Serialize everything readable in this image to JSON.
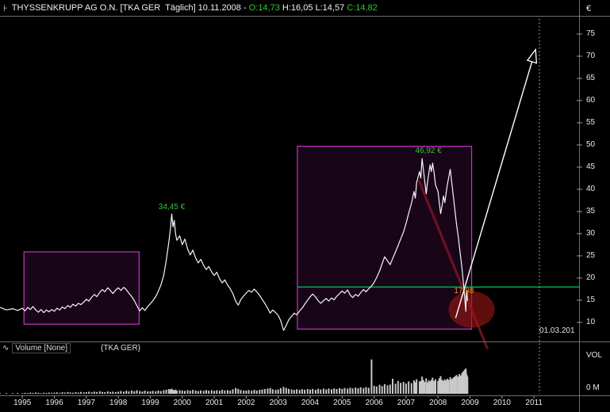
{
  "window": {
    "title_icon": "⊦",
    "title_segments": [
      {
        "text": "THYSSENKRUPP AG O.N. [TKA GER  Täglich] 10.11.2008 - ",
        "color": "#f0f0f0"
      },
      {
        "text": "O:14,73 ",
        "color": "#2ecc2e"
      },
      {
        "text": "H:16,05 L:14,57 ",
        "color": "#f0f0f0"
      },
      {
        "text": "C:14,82",
        "color": "#2ecc2e"
      }
    ]
  },
  "price_axis": {
    "currency": "€",
    "ticks": [
      75,
      70,
      65,
      60,
      55,
      50,
      45,
      40,
      35,
      30,
      25,
      20,
      15,
      10
    ]
  },
  "time_axis": {
    "years": [
      "1995",
      "1996",
      "1997",
      "1998",
      "1999",
      "2000",
      "2001",
      "2002",
      "2003",
      "2004",
      "2005",
      "2006",
      "2007",
      "2008",
      "2009",
      "2010",
      "2011"
    ]
  },
  "volume_pane": {
    "icon": "∿",
    "indicator_label": "Volume [None]",
    "instrument_label": "{TKA GER}",
    "axis_label": "VOL",
    "zero_label": "0 M"
  },
  "chart_data": {
    "type": "line",
    "instrument": "THYSSENKRUPP AG O.N.",
    "symbol": "TKA GER",
    "period": "Täglich",
    "date": "10.11.2008",
    "ohlc": {
      "open": "14,73",
      "high": "16,05",
      "low": "14,57",
      "close": "14,82"
    },
    "price_unit": "€",
    "x_range": [
      1994.3,
      2012.41
    ],
    "y_range": [
      5.7,
      79.1
    ],
    "line_color": "#f5f5f5",
    "price_series": [
      [
        1994.3,
        13.4
      ],
      [
        1994.5,
        12.8
      ],
      [
        1994.7,
        13.1
      ],
      [
        1994.85,
        12.7
      ],
      [
        1995.0,
        13.2
      ],
      [
        1995.08,
        12.6
      ],
      [
        1995.17,
        13.4
      ],
      [
        1995.25,
        12.9
      ],
      [
        1995.33,
        13.6
      ],
      [
        1995.42,
        12.8
      ],
      [
        1995.5,
        12.3
      ],
      [
        1995.58,
        12.9
      ],
      [
        1995.67,
        12.2
      ],
      [
        1995.75,
        12.8
      ],
      [
        1995.83,
        12.4
      ],
      [
        1995.92,
        12.9
      ],
      [
        1996.0,
        12.5
      ],
      [
        1996.08,
        13.2
      ],
      [
        1996.17,
        12.8
      ],
      [
        1996.25,
        13.5
      ],
      [
        1996.33,
        13.1
      ],
      [
        1996.42,
        13.8
      ],
      [
        1996.5,
        13.4
      ],
      [
        1996.58,
        14.1
      ],
      [
        1996.67,
        13.7
      ],
      [
        1996.75,
        14.3
      ],
      [
        1996.83,
        14.0
      ],
      [
        1996.92,
        14.6
      ],
      [
        1997.0,
        15.2
      ],
      [
        1997.08,
        14.8
      ],
      [
        1997.17,
        15.7
      ],
      [
        1997.25,
        16.3
      ],
      [
        1997.33,
        15.8
      ],
      [
        1997.42,
        16.8
      ],
      [
        1997.5,
        17.4
      ],
      [
        1997.58,
        16.9
      ],
      [
        1997.67,
        17.8
      ],
      [
        1997.75,
        17.2
      ],
      [
        1997.83,
        16.5
      ],
      [
        1997.92,
        17.3
      ],
      [
        1998.0,
        17.8
      ],
      [
        1998.08,
        17.2
      ],
      [
        1998.17,
        17.9
      ],
      [
        1998.25,
        17.4
      ],
      [
        1998.33,
        16.6
      ],
      [
        1998.42,
        15.8
      ],
      [
        1998.5,
        14.9
      ],
      [
        1998.58,
        13.8
      ],
      [
        1998.67,
        12.6
      ],
      [
        1998.75,
        13.3
      ],
      [
        1998.83,
        12.7
      ],
      [
        1998.92,
        13.6
      ],
      [
        1999.0,
        14.2
      ],
      [
        1999.08,
        14.9
      ],
      [
        1999.17,
        15.8
      ],
      [
        1999.25,
        17.0
      ],
      [
        1999.33,
        18.4
      ],
      [
        1999.42,
        20.6
      ],
      [
        1999.5,
        24.0
      ],
      [
        1999.58,
        28.0
      ],
      [
        1999.63,
        31.0
      ],
      [
        1999.67,
        34.45
      ],
      [
        1999.71,
        31.5
      ],
      [
        1999.75,
        33.0
      ],
      [
        1999.79,
        30.0
      ],
      [
        1999.83,
        28.5
      ],
      [
        1999.92,
        29.5
      ],
      [
        2000.0,
        27.5
      ],
      [
        2000.08,
        28.8
      ],
      [
        2000.17,
        26.5
      ],
      [
        2000.25,
        25.2
      ],
      [
        2000.33,
        26.3
      ],
      [
        2000.42,
        24.5
      ],
      [
        2000.5,
        23.4
      ],
      [
        2000.58,
        24.2
      ],
      [
        2000.67,
        22.8
      ],
      [
        2000.75,
        21.9
      ],
      [
        2000.83,
        22.6
      ],
      [
        2000.92,
        21.4
      ],
      [
        2001.0,
        20.6
      ],
      [
        2001.08,
        21.3
      ],
      [
        2001.17,
        19.8
      ],
      [
        2001.25,
        18.9
      ],
      [
        2001.33,
        19.6
      ],
      [
        2001.42,
        18.4
      ],
      [
        2001.5,
        17.6
      ],
      [
        2001.58,
        16.5
      ],
      [
        2001.67,
        14.8
      ],
      [
        2001.75,
        13.9
      ],
      [
        2001.83,
        15.1
      ],
      [
        2001.92,
        16.0
      ],
      [
        2002.0,
        16.6
      ],
      [
        2002.08,
        17.2
      ],
      [
        2002.17,
        16.8
      ],
      [
        2002.25,
        17.5
      ],
      [
        2002.33,
        16.9
      ],
      [
        2002.42,
        16.1
      ],
      [
        2002.5,
        15.2
      ],
      [
        2002.58,
        14.3
      ],
      [
        2002.67,
        13.2
      ],
      [
        2002.75,
        12.1
      ],
      [
        2002.83,
        12.8
      ],
      [
        2002.92,
        12.2
      ],
      [
        2003.0,
        11.6
      ],
      [
        2003.08,
        10.4
      ],
      [
        2003.17,
        8.2
      ],
      [
        2003.25,
        9.3
      ],
      [
        2003.33,
        10.6
      ],
      [
        2003.42,
        11.4
      ],
      [
        2003.5,
        12.1
      ],
      [
        2003.58,
        11.7
      ],
      [
        2003.67,
        12.6
      ],
      [
        2003.75,
        13.2
      ],
      [
        2003.83,
        14.1
      ],
      [
        2003.92,
        15.0
      ],
      [
        2004.0,
        15.8
      ],
      [
        2004.08,
        16.4
      ],
      [
        2004.17,
        15.7
      ],
      [
        2004.25,
        14.9
      ],
      [
        2004.33,
        14.3
      ],
      [
        2004.42,
        14.9
      ],
      [
        2004.5,
        15.4
      ],
      [
        2004.58,
        14.8
      ],
      [
        2004.67,
        15.5
      ],
      [
        2004.75,
        15.1
      ],
      [
        2004.83,
        15.9
      ],
      [
        2004.92,
        16.5
      ],
      [
        2005.0,
        17.1
      ],
      [
        2005.08,
        16.6
      ],
      [
        2005.17,
        17.3
      ],
      [
        2005.25,
        16.2
      ],
      [
        2005.33,
        15.6
      ],
      [
        2005.42,
        16.3
      ],
      [
        2005.5,
        15.9
      ],
      [
        2005.58,
        16.7
      ],
      [
        2005.67,
        17.4
      ],
      [
        2005.75,
        16.9
      ],
      [
        2005.83,
        17.6
      ],
      [
        2005.92,
        18.2
      ],
      [
        2006.0,
        19.0
      ],
      [
        2006.08,
        20.1
      ],
      [
        2006.17,
        21.6
      ],
      [
        2006.25,
        23.2
      ],
      [
        2006.33,
        24.8
      ],
      [
        2006.42,
        23.9
      ],
      [
        2006.5,
        23.0
      ],
      [
        2006.58,
        24.4
      ],
      [
        2006.67,
        25.9
      ],
      [
        2006.75,
        27.3
      ],
      [
        2006.83,
        28.8
      ],
      [
        2006.92,
        30.4
      ],
      [
        2007.0,
        32.3
      ],
      [
        2007.08,
        34.6
      ],
      [
        2007.17,
        36.9
      ],
      [
        2007.25,
        39.5
      ],
      [
        2007.29,
        38.0
      ],
      [
        2007.33,
        41.5
      ],
      [
        2007.42,
        44.0
      ],
      [
        2007.46,
        42.5
      ],
      [
        2007.5,
        46.92
      ],
      [
        2007.54,
        44.5
      ],
      [
        2007.58,
        42.0
      ],
      [
        2007.63,
        39.0
      ],
      [
        2007.67,
        41.5
      ],
      [
        2007.71,
        43.5
      ],
      [
        2007.75,
        45.5
      ],
      [
        2007.79,
        44.0
      ],
      [
        2007.83,
        45.9
      ],
      [
        2007.88,
        43.5
      ],
      [
        2007.92,
        41.0
      ],
      [
        2008.0,
        39.5
      ],
      [
        2008.04,
        37.0
      ],
      [
        2008.08,
        34.5
      ],
      [
        2008.13,
        36.5
      ],
      [
        2008.17,
        38.5
      ],
      [
        2008.21,
        37.0
      ],
      [
        2008.25,
        39.0
      ],
      [
        2008.29,
        41.0
      ],
      [
        2008.33,
        42.5
      ],
      [
        2008.38,
        44.5
      ],
      [
        2008.42,
        42.0
      ],
      [
        2008.46,
        39.5
      ],
      [
        2008.5,
        37.0
      ],
      [
        2008.54,
        34.5
      ],
      [
        2008.58,
        32.0
      ],
      [
        2008.63,
        29.5
      ],
      [
        2008.67,
        27.0
      ],
      [
        2008.71,
        24.5
      ],
      [
        2008.75,
        22.0
      ],
      [
        2008.79,
        19.0
      ],
      [
        2008.83,
        16.0
      ],
      [
        2008.85,
        14.0
      ],
      [
        2008.87,
        12.5
      ],
      [
        2008.88,
        15.5
      ],
      [
        2008.9,
        17.2
      ],
      [
        2008.92,
        14.8
      ]
    ],
    "volume_values": [
      0.5,
      0.6,
      0.5,
      0.7,
      0.6,
      0.9,
      0.7,
      1.1,
      0.8,
      1.2,
      0.9,
      0.7,
      1.0,
      0.8,
      1.1,
      0.9,
      1.0,
      1.3,
      0.9,
      1.4,
      1.1,
      1.6,
      1.2,
      1.0,
      1.5,
      1.1,
      1.7,
      1.3,
      1.5,
      1.9,
      1.4,
      2.1,
      1.6,
      2.3,
      1.8,
      1.5,
      2.2,
      1.7,
      2.0,
      1.6,
      2.0,
      2.6,
      1.9,
      2.8,
      2.2,
      3.1,
      2.4,
      3.3,
      2.6,
      2.1,
      2.9,
      2.3,
      2.2,
      2.7,
      2.4,
      3.0,
      2.6,
      3.3,
      3.8,
      4.4,
      4.0,
      4.8,
      3.6,
      3.2,
      3.9,
      3.0,
      3.4,
      3.1,
      2.7,
      3.4,
      2.9,
      3.6,
      3.0,
      2.6,
      3.2,
      2.8,
      3.5,
      2.9,
      3.3,
      2.8,
      3.3,
      2.9,
      3.6,
      3.0,
      3.4,
      2.9,
      4.2,
      5.4,
      4.6,
      3.5,
      3.1,
      3.0,
      3.5,
      2.9,
      3.7,
      3.1,
      3.6,
      4.0,
      4.4,
      4.9,
      5.3,
      4.2,
      3.6,
      4.1,
      5.2,
      6.4,
      5.5,
      4.6,
      4.0,
      3.6,
      4.2,
      3.7,
      4.3,
      3.8,
      4.4,
      3.9,
      4.5,
      3.8,
      4.7,
      4.0,
      4.8,
      4.1,
      4.9,
      4.2,
      5.0,
      4.4,
      5.2,
      4.6,
      5.4,
      4.8,
      5.6,
      5.0,
      5.8,
      5.1,
      6.0,
      5.3,
      6.2,
      5.6,
      32.0,
      7.5,
      6.8,
      8.4,
      7.2,
      9.0,
      7.8,
      8.6,
      14.0,
      9.4,
      12.0,
      10.2,
      11.0,
      9.5,
      11.5,
      10.0,
      12.5,
      10.8,
      13.5,
      11.5,
      12.0,
      16.0,
      13.0,
      11.0,
      14.5,
      10.5,
      12.5,
      11.5,
      13.0,
      15.0,
      12.0,
      13.5,
      12.0,
      14.5,
      16.5,
      13.0,
      12.0,
      13.5,
      12.5,
      14.0,
      13.0,
      15.5,
      13.5,
      14.5,
      15.5,
      16.5,
      17.5,
      16.0,
      18.5,
      17.0,
      19.5,
      21.0,
      22.5,
      20.0,
      23.5,
      19.0,
      17.5,
      16.0
    ],
    "volume_max": 34,
    "horizontal_line": {
      "price": 17.98,
      "x_start": 2003.6,
      "color": "#00a651",
      "label": "17,98"
    },
    "trend_line": {
      "x1": 2007.4,
      "price1": 42.0,
      "x2": 2009.55,
      "price2": 4.0,
      "color": "#7c1222"
    },
    "projection_arrow": {
      "x1": 2008.55,
      "price1": 11.0,
      "x2": 2011.05,
      "price2": 71.5,
      "color": "#ffffff"
    },
    "highlight_boxes": [
      {
        "x1": 1995.05,
        "price1": 9.6,
        "x2": 1998.65,
        "price2": 25.9
      },
      {
        "x1": 2003.6,
        "price1": 8.5,
        "x2": 2009.05,
        "price2": 49.7
      }
    ],
    "box_color": "#c434c4",
    "highlight_ellipse": {
      "x": 2009.05,
      "price": 12.9,
      "rx_years": 0.72,
      "ry_price": 4.1,
      "color": "#a01515"
    },
    "vertical_dotted_line": {
      "x": 2011.17
    },
    "annotations": [
      {
        "id": "peak1",
        "text": "34,45 €",
        "x": 1999.67,
        "price": 35.9,
        "color": "#3fbf3f",
        "align": "center"
      },
      {
        "id": "peak2",
        "text": "46,92 €",
        "x": 2007.7,
        "price": 48.6,
        "color": "#3fbf3f",
        "align": "center"
      },
      {
        "id": "level-label",
        "text": "17,98",
        "x": 2008.5,
        "price": 17.0,
        "color": "#e8922a",
        "align": "left"
      },
      {
        "id": "date-label",
        "text": "01.03.201",
        "x": 2011.17,
        "price": 8.0,
        "color": "#e0e0e0",
        "align": "left"
      }
    ]
  }
}
